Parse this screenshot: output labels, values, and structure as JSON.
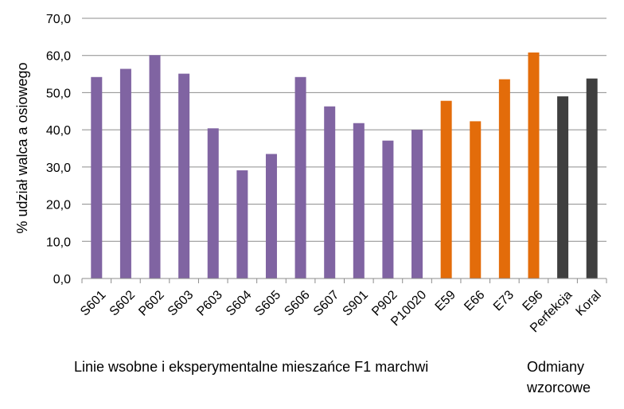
{
  "chart_data": {
    "type": "bar",
    "ylabel": "% udział walca a osiowego",
    "xlabel": "",
    "ylim": [
      0,
      70
    ],
    "yticks": [
      "0,0",
      "10,0",
      "20,0",
      "30,0",
      "40,0",
      "50,0",
      "60,0",
      "70,0"
    ],
    "grid": true,
    "categories": [
      "S601",
      "S602",
      "P602",
      "S603",
      "P603",
      "S604",
      "S605",
      "S606",
      "S607",
      "S901",
      "P902",
      "P10020",
      "E59",
      "E66",
      "E73",
      "E96",
      "Perfekcja",
      "Koral"
    ],
    "values": [
      54.2,
      56.4,
      60.1,
      55.1,
      40.4,
      29.1,
      33.5,
      54.2,
      46.3,
      41.8,
      37.1,
      40.0,
      47.8,
      42.3,
      53.6,
      60.8,
      49.0,
      53.8
    ],
    "bar_colors": [
      "#8064A2",
      "#8064A2",
      "#8064A2",
      "#8064A2",
      "#8064A2",
      "#8064A2",
      "#8064A2",
      "#8064A2",
      "#8064A2",
      "#8064A2",
      "#8064A2",
      "#8064A2",
      "#E36C0A",
      "#E36C0A",
      "#E36C0A",
      "#E36C0A",
      "#3F3F3F",
      "#3F3F3F"
    ],
    "group_labels": {
      "lines": "Linie wsobne i eksperymentalne  mieszańce F1 marchwi",
      "standards_line1": "Odmiany",
      "standards_line2": "wzorcowe"
    }
  }
}
